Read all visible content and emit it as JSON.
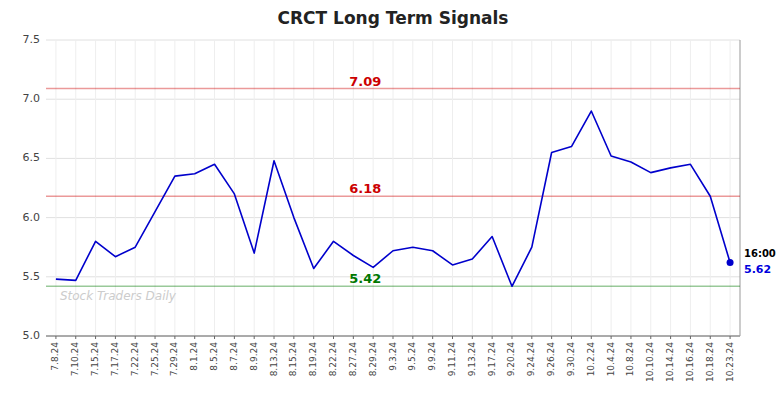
{
  "chart_data": {
    "type": "line",
    "title": "CRCT Long Term Signals",
    "categories": [
      "7.8.24",
      "7.10.24",
      "7.15.24",
      "7.17.24",
      "7.22.24",
      "7.25.24",
      "7.29.24",
      "8.1.24",
      "8.5.24",
      "8.7.24",
      "8.9.24",
      "8.13.24",
      "8.15.24",
      "8.19.24",
      "8.22.24",
      "8.27.24",
      "8.29.24",
      "9.3.24",
      "9.5.24",
      "9.9.24",
      "9.11.24",
      "9.13.24",
      "9.17.24",
      "9.20.24",
      "9.24.24",
      "9.26.24",
      "9.30.24",
      "10.2.24",
      "10.4.24",
      "10.8.24",
      "10.10.24",
      "10.14.24",
      "10.16.24",
      "10.18.24",
      "10.23.24"
    ],
    "series": [
      {
        "color": "#0000cc",
        "values": [
          5.48,
          5.47,
          5.8,
          5.67,
          5.75,
          6.05,
          6.35,
          6.37,
          6.45,
          6.2,
          5.7,
          6.48,
          6.0,
          5.57,
          5.8,
          5.68,
          5.58,
          5.72,
          5.75,
          5.72,
          5.6,
          5.65,
          5.84,
          5.42,
          5.75,
          6.55,
          6.6,
          6.9,
          6.52,
          6.47,
          6.38,
          6.42,
          6.45,
          6.18,
          5.62
        ]
      }
    ],
    "ylim": [
      5.0,
      7.5
    ],
    "yticks": [
      {
        "value": 5.0,
        "label": "5.0"
      },
      5.5,
      {
        "value": 6.0,
        "label": "6.0"
      },
      6.5,
      {
        "value": 7.0,
        "label": "7.0"
      },
      7.5
    ],
    "grid": true,
    "reference_lines": [
      {
        "value": 7.09,
        "label": "7.09",
        "color": "#cc0000"
      },
      {
        "value": 6.18,
        "label": "6.18",
        "color": "#cc0000"
      },
      {
        "value": 5.42,
        "label": "5.42",
        "color": "#007700"
      }
    ],
    "annotations": [
      {
        "text": "16:00",
        "y": 5.62
      },
      {
        "text": "5.62",
        "y": 5.62,
        "color": "#0000dd"
      }
    ],
    "watermark": "Stock Traders Daily"
  }
}
